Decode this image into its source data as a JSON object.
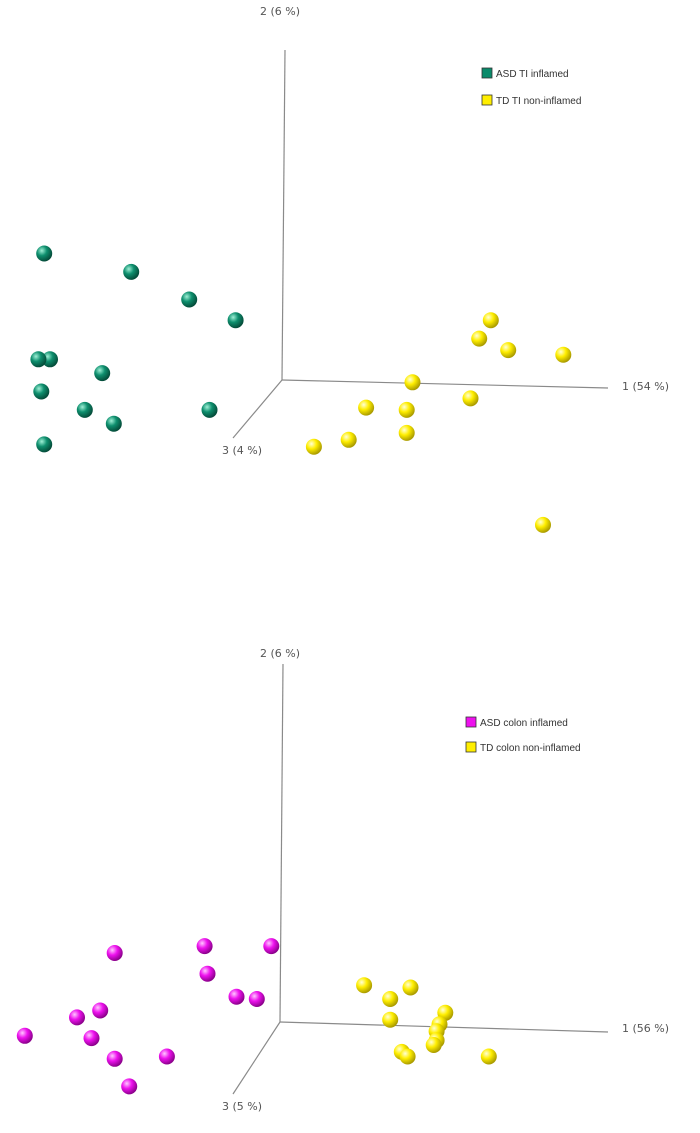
{
  "chart_data": [
    {
      "type": "scatter",
      "projection": "3d",
      "axis_labels": {
        "x": "1 (54 %)",
        "y": "2 (6 %)",
        "z": "3 (4 %)"
      },
      "legend_placement": "top-right",
      "series": [
        {
          "name": "ASD TI inflamed",
          "color": "#0a8a6a",
          "points": [
            {
              "x": -0.82,
              "y": 0.55
            },
            {
              "x": -0.52,
              "y": 0.47
            },
            {
              "x": -0.32,
              "y": 0.35
            },
            {
              "x": -0.16,
              "y": 0.26
            },
            {
              "x": -0.8,
              "y": 0.09
            },
            {
              "x": -0.84,
              "y": 0.09
            },
            {
              "x": -0.62,
              "y": 0.03
            },
            {
              "x": -0.83,
              "y": -0.05
            },
            {
              "x": -0.68,
              "y": -0.13
            },
            {
              "x": -0.25,
              "y": -0.13
            },
            {
              "x": -0.58,
              "y": -0.19
            },
            {
              "x": -0.82,
              "y": -0.28
            }
          ]
        },
        {
          "name": "TD TI non-inflamed",
          "color": "#ffee00",
          "points": [
            {
              "x": 0.72,
              "y": 0.26
            },
            {
              "x": 0.68,
              "y": 0.18
            },
            {
              "x": 0.78,
              "y": 0.13
            },
            {
              "x": 0.97,
              "y": 0.11
            },
            {
              "x": 0.45,
              "y": -0.01
            },
            {
              "x": 0.65,
              "y": -0.08
            },
            {
              "x": 0.29,
              "y": -0.12
            },
            {
              "x": 0.43,
              "y": -0.13
            },
            {
              "x": 0.43,
              "y": -0.23
            },
            {
              "x": 0.23,
              "y": -0.26
            },
            {
              "x": 0.11,
              "y": -0.29
            },
            {
              "x": 0.9,
              "y": -0.63
            }
          ]
        }
      ]
    },
    {
      "type": "scatter",
      "projection": "3d",
      "axis_labels": {
        "x": "1 (56 %)",
        "y": "2 (6 %)",
        "z": "3 (5 %)"
      },
      "legend_placement": "top-right",
      "series": [
        {
          "name": "ASD colon inflamed",
          "color": "#ee11ee",
          "points": [
            {
              "x": -0.26,
              "y": 0.33
            },
            {
              "x": -0.03,
              "y": 0.33
            },
            {
              "x": -0.57,
              "y": 0.3
            },
            {
              "x": -0.25,
              "y": 0.21
            },
            {
              "x": -0.15,
              "y": 0.11
            },
            {
              "x": -0.08,
              "y": 0.1
            },
            {
              "x": -0.62,
              "y": 0.05
            },
            {
              "x": -0.7,
              "y": 0.02
            },
            {
              "x": -0.65,
              "y": -0.07
            },
            {
              "x": -0.88,
              "y": -0.06
            },
            {
              "x": -0.39,
              "y": -0.15
            },
            {
              "x": -0.57,
              "y": -0.16
            },
            {
              "x": -0.52,
              "y": -0.28
            }
          ]
        },
        {
          "name": "TD colon non-inflamed",
          "color": "#ffee00",
          "points": [
            {
              "x": 0.29,
              "y": 0.16
            },
            {
              "x": 0.45,
              "y": 0.15
            },
            {
              "x": 0.38,
              "y": 0.1
            },
            {
              "x": 0.57,
              "y": 0.04
            },
            {
              "x": 0.38,
              "y": 0.01
            },
            {
              "x": 0.55,
              "y": -0.01
            },
            {
              "x": 0.54,
              "y": -0.04
            },
            {
              "x": 0.54,
              "y": -0.08
            },
            {
              "x": 0.53,
              "y": -0.1
            },
            {
              "x": 0.42,
              "y": -0.13
            },
            {
              "x": 0.44,
              "y": -0.15
            },
            {
              "x": 0.72,
              "y": -0.15
            }
          ]
        }
      ]
    }
  ]
}
